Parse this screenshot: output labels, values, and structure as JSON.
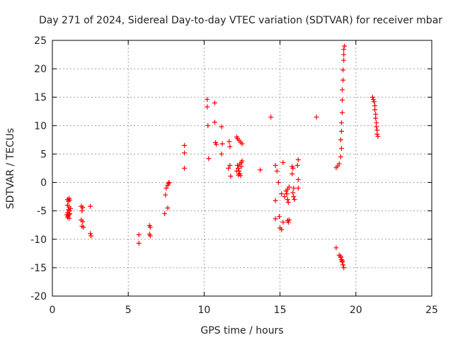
{
  "chart_data": {
    "type": "scatter",
    "title": "Day 271 of 2024, Sidereal Day-to-day VTEC variation (SDTVAR) for receiver mbar",
    "xlabel": "GPS time / hours",
    "ylabel": "SDTVAR / TECUs",
    "xlim": [
      0,
      25
    ],
    "ylim": [
      -20,
      25
    ],
    "xticks": [
      0,
      5,
      10,
      15,
      20,
      25
    ],
    "yticks": [
      -20,
      -15,
      -10,
      -5,
      0,
      5,
      10,
      15,
      20,
      25
    ],
    "grid": true,
    "marker": "+",
    "marker_color": "#ff0000",
    "series": [
      {
        "name": "SDTVAR",
        "points": [
          [
            1.0,
            -3.0
          ],
          [
            1.05,
            -3.3
          ],
          [
            1.1,
            -2.8
          ],
          [
            1.15,
            -3.1
          ],
          [
            1.0,
            -4.0
          ],
          [
            1.1,
            -4.3
          ],
          [
            1.05,
            -4.8
          ],
          [
            1.15,
            -5.0
          ],
          [
            1.0,
            -5.3
          ],
          [
            1.1,
            -5.6
          ],
          [
            1.05,
            -5.9
          ],
          [
            1.0,
            -6.1
          ],
          [
            1.15,
            -5.5
          ],
          [
            1.1,
            -6.3
          ],
          [
            1.2,
            -4.6
          ],
          [
            0.95,
            -5.7
          ],
          [
            1.9,
            -4.2
          ],
          [
            2.0,
            -4.4
          ],
          [
            1.95,
            -5.0
          ],
          [
            1.9,
            -6.6
          ],
          [
            2.0,
            -6.9
          ],
          [
            1.95,
            -7.7
          ],
          [
            2.05,
            -7.9
          ],
          [
            2.5,
            -4.2
          ],
          [
            2.5,
            -9.0
          ],
          [
            2.55,
            -9.4
          ],
          [
            5.7,
            -9.2
          ],
          [
            5.7,
            -10.7
          ],
          [
            6.4,
            -7.6
          ],
          [
            6.45,
            -7.9
          ],
          [
            6.4,
            -9.1
          ],
          [
            6.45,
            -9.4
          ],
          [
            7.4,
            -5.5
          ],
          [
            7.45,
            -2.2
          ],
          [
            7.5,
            -1.0
          ],
          [
            7.6,
            -0.5
          ],
          [
            7.65,
            -0.2
          ],
          [
            7.7,
            0.0
          ],
          [
            7.6,
            -4.5
          ],
          [
            8.7,
            6.5
          ],
          [
            8.7,
            5.2
          ],
          [
            8.7,
            2.5
          ],
          [
            10.2,
            14.6
          ],
          [
            10.2,
            13.3
          ],
          [
            10.25,
            10.0
          ],
          [
            10.3,
            4.2
          ],
          [
            10.7,
            14.0
          ],
          [
            10.7,
            10.6
          ],
          [
            10.75,
            7.0
          ],
          [
            10.8,
            6.7
          ],
          [
            11.15,
            9.8
          ],
          [
            11.2,
            6.8
          ],
          [
            11.15,
            5.0
          ],
          [
            11.65,
            7.2
          ],
          [
            11.7,
            6.3
          ],
          [
            11.7,
            3.0
          ],
          [
            11.6,
            2.5
          ],
          [
            11.75,
            1.1
          ],
          [
            12.15,
            8.0
          ],
          [
            12.2,
            7.7
          ],
          [
            12.3,
            7.4
          ],
          [
            12.4,
            7.1
          ],
          [
            12.5,
            6.8
          ],
          [
            12.2,
            3.0
          ],
          [
            12.25,
            2.5
          ],
          [
            12.3,
            2.0
          ],
          [
            12.35,
            1.5
          ],
          [
            12.4,
            1.2
          ],
          [
            12.45,
            3.5
          ],
          [
            12.5,
            3.8
          ],
          [
            12.15,
            2.0
          ],
          [
            12.25,
            1.3
          ],
          [
            12.35,
            3.2
          ],
          [
            12.45,
            2.8
          ],
          [
            13.7,
            2.2
          ],
          [
            14.4,
            11.5
          ],
          [
            14.7,
            3.0
          ],
          [
            14.8,
            2.0
          ],
          [
            14.7,
            -3.2
          ],
          [
            14.7,
            -6.4
          ],
          [
            14.9,
            0.0
          ],
          [
            14.95,
            -6.0
          ],
          [
            15.0,
            -8.0
          ],
          [
            15.1,
            -8.3
          ],
          [
            15.2,
            3.5
          ],
          [
            15.1,
            -2.0
          ],
          [
            15.2,
            -7.0
          ],
          [
            15.3,
            -2.5
          ],
          [
            15.4,
            -1.5
          ],
          [
            15.45,
            -2.0
          ],
          [
            15.5,
            -3.0
          ],
          [
            15.55,
            -3.5
          ],
          [
            15.5,
            -1.2
          ],
          [
            15.6,
            -0.8
          ],
          [
            15.5,
            -6.7
          ],
          [
            15.55,
            -7.0
          ],
          [
            15.6,
            -6.6
          ],
          [
            15.8,
            2.8
          ],
          [
            15.85,
            2.5
          ],
          [
            15.8,
            1.5
          ],
          [
            15.9,
            -1.0
          ],
          [
            15.85,
            -1.8
          ],
          [
            15.9,
            -2.5
          ],
          [
            15.95,
            -3.0
          ],
          [
            16.2,
            4.0
          ],
          [
            16.15,
            3.0
          ],
          [
            16.2,
            0.5
          ],
          [
            16.2,
            -1.0
          ],
          [
            17.4,
            11.5
          ],
          [
            18.7,
            -11.5
          ],
          [
            18.7,
            2.6
          ],
          [
            18.8,
            2.9
          ],
          [
            18.9,
            3.3
          ],
          [
            19.0,
            4.5
          ],
          [
            19.05,
            6.0
          ],
          [
            19.0,
            7.5
          ],
          [
            19.05,
            9.0
          ],
          [
            19.05,
            10.5
          ],
          [
            19.1,
            12.3
          ],
          [
            19.1,
            14.5
          ],
          [
            19.1,
            16.3
          ],
          [
            19.15,
            18.0
          ],
          [
            19.15,
            19.8
          ],
          [
            19.2,
            21.5
          ],
          [
            19.2,
            22.5
          ],
          [
            19.2,
            23.4
          ],
          [
            19.25,
            24.0
          ],
          [
            18.9,
            -12.8
          ],
          [
            19.0,
            -13.2
          ],
          [
            19.05,
            -13.6
          ],
          [
            19.1,
            -14.0
          ],
          [
            19.15,
            -14.5
          ],
          [
            19.2,
            -15.0
          ],
          [
            19.0,
            -13.0
          ],
          [
            19.1,
            -13.8
          ],
          [
            21.1,
            15.0
          ],
          [
            21.15,
            14.6
          ],
          [
            21.2,
            14.2
          ],
          [
            21.25,
            13.5
          ],
          [
            21.25,
            12.8
          ],
          [
            21.3,
            12.0
          ],
          [
            21.3,
            11.3
          ],
          [
            21.35,
            10.5
          ],
          [
            21.35,
            9.8
          ],
          [
            21.4,
            9.2
          ],
          [
            21.4,
            8.5
          ],
          [
            21.45,
            8.1
          ]
        ]
      }
    ]
  }
}
